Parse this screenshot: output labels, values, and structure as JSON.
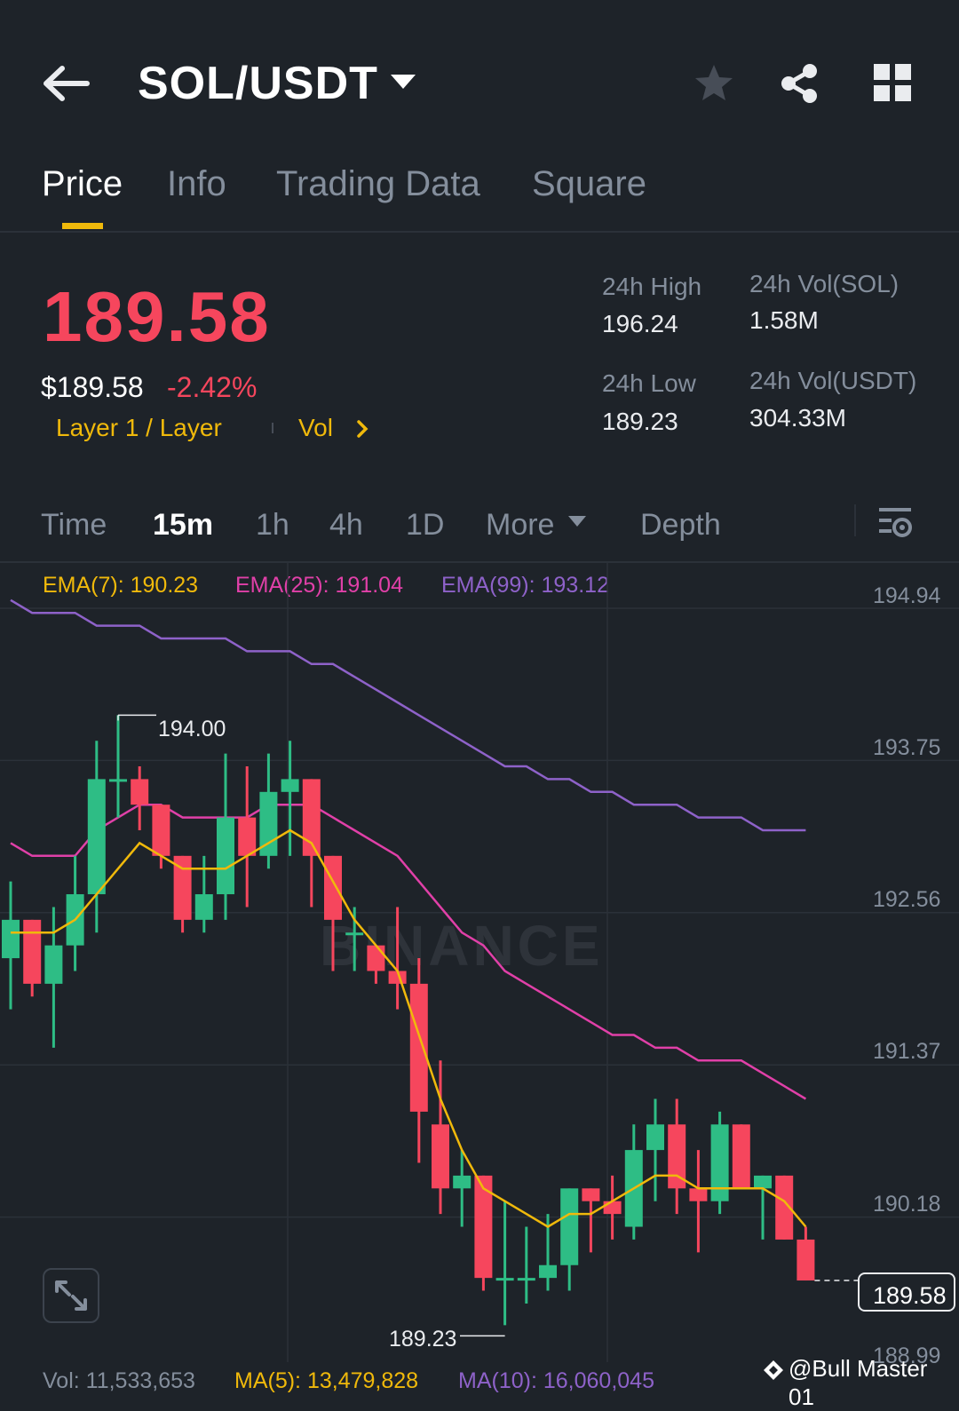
{
  "header": {
    "pair": "SOL/USDT",
    "icons": [
      "back-arrow-icon",
      "caret-down-icon",
      "star-icon",
      "share-icon",
      "grid-icon"
    ]
  },
  "tabs": [
    {
      "label": "Price",
      "active": true
    },
    {
      "label": "Info",
      "active": false
    },
    {
      "label": "Trading Data",
      "active": false
    },
    {
      "label": "Square",
      "active": false
    }
  ],
  "price": {
    "last": "189.58",
    "usd": "$189.58",
    "change_pct": "-2.42%",
    "category": "Layer 1 / Layer",
    "vol_link": "Vol"
  },
  "stats": {
    "high_label": "24h High",
    "high": "196.24",
    "low_label": "24h Low",
    "low": "189.23",
    "vol_base_label": "24h Vol(SOL)",
    "vol_base": "1.58M",
    "vol_quote_label": "24h Vol(USDT)",
    "vol_quote": "304.33M"
  },
  "intervals": {
    "time": "Time",
    "m15": "15m",
    "h1": "1h",
    "h4": "4h",
    "d1": "1D",
    "more": "More",
    "depth": "Depth",
    "active": "15m"
  },
  "indicators": {
    "ema7": "EMA(7): 190.23",
    "ema25": "EMA(25): 191.04",
    "ema99": "EMA(99): 193.12"
  },
  "volume_legend": {
    "vol": "Vol: 11,533,653",
    "ma5": "MA(5): 13,479,828",
    "ma10": "MA(10): 16,060,045"
  },
  "watermark": "BINANCE",
  "credit": "@Bull Master 01",
  "colors": {
    "up": "#2ebd85",
    "down": "#f6465d",
    "ema7": "#f0b90b",
    "ema25": "#e040a8",
    "ema99": "#8e62c9",
    "accent": "#f0b90b"
  },
  "chart_data": {
    "type": "candlestick",
    "interval": "15m",
    "y_axis_labels": [
      "194.94",
      "193.75",
      "192.56",
      "191.37",
      "190.18",
      "188.99"
    ],
    "ylim": [
      188.99,
      194.94
    ],
    "current_price_label": "189.58",
    "high_marker": "194.00",
    "low_marker": "189.23",
    "candles": [
      {
        "o": 192.1,
        "h": 192.7,
        "l": 191.7,
        "c": 192.4
      },
      {
        "o": 192.4,
        "h": 192.4,
        "l": 191.8,
        "c": 191.9
      },
      {
        "o": 191.9,
        "h": 192.5,
        "l": 191.4,
        "c": 192.2
      },
      {
        "o": 192.2,
        "h": 192.9,
        "l": 192.0,
        "c": 192.6
      },
      {
        "o": 192.6,
        "h": 193.8,
        "l": 192.3,
        "c": 193.5
      },
      {
        "o": 193.5,
        "h": 194.0,
        "l": 193.2,
        "c": 193.5
      },
      {
        "o": 193.5,
        "h": 193.6,
        "l": 193.1,
        "c": 193.3
      },
      {
        "o": 193.3,
        "h": 193.3,
        "l": 192.8,
        "c": 192.9
      },
      {
        "o": 192.9,
        "h": 192.9,
        "l": 192.3,
        "c": 192.4
      },
      {
        "o": 192.4,
        "h": 192.9,
        "l": 192.3,
        "c": 192.6
      },
      {
        "o": 192.6,
        "h": 193.7,
        "l": 192.4,
        "c": 193.2
      },
      {
        "o": 193.2,
        "h": 193.6,
        "l": 192.5,
        "c": 192.9
      },
      {
        "o": 192.9,
        "h": 193.7,
        "l": 192.8,
        "c": 193.4
      },
      {
        "o": 193.4,
        "h": 193.8,
        "l": 192.9,
        "c": 193.5
      },
      {
        "o": 193.5,
        "h": 193.5,
        "l": 192.5,
        "c": 192.9
      },
      {
        "o": 192.9,
        "h": 192.9,
        "l": 192.0,
        "c": 192.4
      },
      {
        "o": 192.3,
        "h": 192.5,
        "l": 192.0,
        "c": 192.3
      },
      {
        "o": 192.2,
        "h": 192.2,
        "l": 191.9,
        "c": 192.0
      },
      {
        "o": 192.0,
        "h": 192.5,
        "l": 191.7,
        "c": 191.9
      },
      {
        "o": 191.9,
        "h": 192.1,
        "l": 190.5,
        "c": 190.9
      },
      {
        "o": 190.8,
        "h": 191.3,
        "l": 190.1,
        "c": 190.3
      },
      {
        "o": 190.3,
        "h": 190.6,
        "l": 190.0,
        "c": 190.4
      },
      {
        "o": 190.4,
        "h": 190.4,
        "l": 189.5,
        "c": 189.6
      },
      {
        "o": 189.6,
        "h": 190.2,
        "l": 189.23,
        "c": 189.6
      },
      {
        "o": 189.6,
        "h": 190.0,
        "l": 189.4,
        "c": 189.6
      },
      {
        "o": 189.6,
        "h": 190.1,
        "l": 189.5,
        "c": 189.7
      },
      {
        "o": 189.7,
        "h": 190.3,
        "l": 189.5,
        "c": 190.3
      },
      {
        "o": 190.3,
        "h": 190.3,
        "l": 189.8,
        "c": 190.2
      },
      {
        "o": 190.2,
        "h": 190.4,
        "l": 189.9,
        "c": 190.1
      },
      {
        "o": 190.0,
        "h": 190.8,
        "l": 189.9,
        "c": 190.6
      },
      {
        "o": 190.6,
        "h": 191.0,
        "l": 190.2,
        "c": 190.8
      },
      {
        "o": 190.8,
        "h": 191.0,
        "l": 190.1,
        "c": 190.3
      },
      {
        "o": 190.3,
        "h": 190.6,
        "l": 189.8,
        "c": 190.2
      },
      {
        "o": 190.2,
        "h": 190.9,
        "l": 190.1,
        "c": 190.8
      },
      {
        "o": 190.8,
        "h": 190.8,
        "l": 190.3,
        "c": 190.3
      },
      {
        "o": 190.3,
        "h": 190.4,
        "l": 189.9,
        "c": 190.4
      },
      {
        "o": 190.4,
        "h": 190.4,
        "l": 189.9,
        "c": 189.9
      },
      {
        "o": 189.9,
        "h": 190.0,
        "l": 189.58,
        "c": 189.58
      }
    ],
    "ema7": [
      192.3,
      192.3,
      192.3,
      192.4,
      192.6,
      192.8,
      193.0,
      192.9,
      192.8,
      192.8,
      192.8,
      192.9,
      193.0,
      193.1,
      193.0,
      192.7,
      192.4,
      192.2,
      192.0,
      191.5,
      191.0,
      190.6,
      190.3,
      190.2,
      190.1,
      190.0,
      190.1,
      190.1,
      190.2,
      190.3,
      190.4,
      190.4,
      190.3,
      190.3,
      190.3,
      190.3,
      190.2,
      190.0
    ],
    "ema25": [
      193.0,
      192.9,
      192.9,
      192.9,
      193.1,
      193.2,
      193.3,
      193.3,
      193.2,
      193.2,
      193.2,
      193.2,
      193.3,
      193.3,
      193.3,
      193.2,
      193.1,
      193.0,
      192.9,
      192.7,
      192.5,
      192.3,
      192.2,
      192.0,
      191.9,
      191.8,
      191.7,
      191.6,
      191.5,
      191.5,
      191.4,
      191.4,
      191.3,
      191.3,
      191.3,
      191.2,
      191.1,
      191.0
    ],
    "ema99": [
      194.9,
      194.8,
      194.8,
      194.8,
      194.7,
      194.7,
      194.7,
      194.6,
      194.6,
      194.6,
      194.6,
      194.5,
      194.5,
      194.5,
      194.4,
      194.4,
      194.3,
      194.2,
      194.1,
      194.0,
      193.9,
      193.8,
      193.7,
      193.6,
      193.6,
      193.5,
      193.5,
      193.4,
      193.4,
      193.3,
      193.3,
      193.3,
      193.2,
      193.2,
      193.2,
      193.1,
      193.1,
      193.1
    ]
  }
}
